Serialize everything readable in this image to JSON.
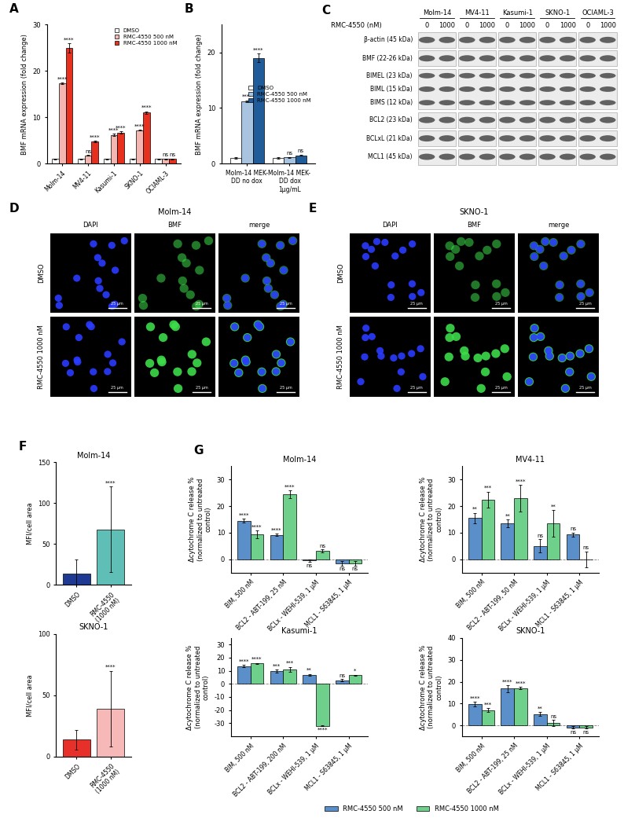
{
  "chart_data": [
    {
      "panel": "A",
      "type": "bar",
      "ylabel": "BMF mRNA expression (fold change)",
      "categories": [
        "Molm-14",
        "MV4-11",
        "Kasumi-1",
        "SKNO-1",
        "OCIAML-3"
      ],
      "series": [
        {
          "name": "DMSO",
          "color": "#ffffff",
          "values": [
            1,
            1,
            1,
            1,
            1
          ],
          "errors": [
            0.1,
            0.1,
            0.1,
            0.1,
            0.1
          ],
          "significance": [
            null,
            null,
            null,
            null,
            null
          ]
        },
        {
          "name": "RMC-4550 500 nM",
          "color": "#f4b6b0",
          "values": [
            17.3,
            1.8,
            6.2,
            7.2,
            1.0
          ],
          "errors": [
            0.2,
            0.1,
            0.2,
            0.1,
            0.1
          ],
          "significance": [
            "****",
            "ns",
            "****",
            "****",
            "ns"
          ]
        },
        {
          "name": "RMC-4550 1000 nM",
          "color": "#e8301f",
          "values": [
            25,
            4.8,
            6.7,
            11,
            1.0
          ],
          "errors": [
            1.0,
            0.2,
            0.2,
            0.3,
            0.1
          ],
          "significance": [
            "****",
            "****",
            "****",
            "****",
            "ns"
          ]
        }
      ],
      "ylim": [
        0,
        30
      ],
      "yticks": [
        0,
        10,
        20,
        30
      ],
      "legend": "upper right"
    },
    {
      "panel": "B",
      "type": "bar",
      "ylabel": "BMF mRNA expression (fold change)",
      "categories": [
        "Molm-14 MEK-DD no dox",
        "Molm-14 MEK-DD dox 1μg/mL"
      ],
      "series": [
        {
          "name": "DMSO",
          "color": "#ffffff",
          "values": [
            1,
            1
          ],
          "errors": [
            0.1,
            0.1
          ],
          "significance": [
            null,
            null
          ]
        },
        {
          "name": "RMC-4550 500 nM",
          "color": "#a9c4e0",
          "values": [
            11.2,
            1.1
          ],
          "errors": [
            0.2,
            0.1
          ],
          "significance": [
            "****",
            "ns"
          ]
        },
        {
          "name": "RMC-4550 1000 nM",
          "color": "#1f5c99",
          "values": [
            19,
            1.5
          ],
          "errors": [
            0.8,
            0.1
          ],
          "significance": [
            "****",
            "ns"
          ]
        }
      ],
      "ylim": [
        0,
        25
      ],
      "yticks": [
        0,
        10,
        20
      ],
      "legend": "center right"
    },
    {
      "panel": "F",
      "type": "bar",
      "title": "Molm-14",
      "ylabel": "MFI/cell area",
      "categories": [
        "DMSO",
        "RMC-4550 (1000 nM)"
      ],
      "values": [
        14,
        68
      ],
      "errors": [
        17,
        52
      ],
      "colors": [
        "#1f3a93",
        "#5fbfb7"
      ],
      "significance": [
        null,
        "****"
      ],
      "ylim": [
        0,
        150
      ],
      "yticks": [
        0,
        50,
        100,
        150
      ]
    },
    {
      "type": "bar",
      "title": "SKNO-1",
      "ylabel": "MFI/cell area",
      "categories": [
        "DMSO",
        "RMC-4550 (1000 nM)"
      ],
      "values": [
        14,
        39
      ],
      "errors": [
        8,
        31
      ],
      "colors": [
        "#e8302a",
        "#f7b8b8"
      ],
      "significance": [
        null,
        "****"
      ],
      "ylim": [
        0,
        100
      ],
      "yticks": [
        0,
        50,
        100
      ]
    },
    {
      "panel": "G",
      "type": "bar",
      "title": "Molm-14",
      "ylabel": "Δcytochrome C release % (normalized to untreated control)",
      "categories": [
        "BIM, 500 nM",
        "BCL2 - ABT-199, 25 nM",
        "BCLx - WEHI-539, 1 µM",
        "MCL1 - S63845, 1 µM"
      ],
      "series": [
        {
          "name": "RMC-4550 500 nM",
          "color": "#5b8fc9",
          "values": [
            14.5,
            9.2,
            -0.5,
            -1.5
          ],
          "errors": [
            0.8,
            0.5,
            0.5,
            0.8
          ],
          "significance": [
            "****",
            "****",
            "ns",
            "ns"
          ]
        },
        {
          "name": "RMC-4550 1000 nM",
          "color": "#6fd08c",
          "values": [
            9.3,
            24.5,
            3.2,
            -1.5
          ],
          "errors": [
            1.5,
            1.5,
            0.5,
            0.8
          ],
          "significance": [
            "****",
            "****",
            "ns",
            "ns"
          ]
        }
      ],
      "ylim": [
        -5,
        35
      ],
      "yticks": [
        0,
        10,
        20,
        30
      ]
    },
    {
      "type": "bar",
      "title": "MV4-11",
      "ylabel": "Δcytochrome C release % (normalized to untreated control)",
      "categories": [
        "BIM, 500 nM",
        "BCL2 - ABT-199, 50 nM",
        "BCLx - WEHI-539, 1 µM",
        "MCL1 - S63845, 1 µM"
      ],
      "series": [
        {
          "name": "RMC-4550 500 nM",
          "color": "#5b8fc9",
          "values": [
            15.5,
            13.5,
            5,
            9.3
          ],
          "errors": [
            2,
            1.5,
            2.5,
            0.8
          ],
          "significance": [
            "**",
            "**",
            "ns",
            "ns"
          ]
        },
        {
          "name": "RMC-4550 1000 nM",
          "color": "#6fd08c",
          "values": [
            22.5,
            23,
            13.5,
            0
          ],
          "errors": [
            3,
            5,
            5,
            3
          ],
          "significance": [
            "***",
            "****",
            "**",
            "ns"
          ]
        }
      ],
      "ylim": [
        -5,
        35
      ],
      "yticks": [
        0,
        10,
        20,
        30
      ]
    },
    {
      "type": "bar",
      "title": "Kasumi-1",
      "ylabel": "Δcytochrome C release % (normalized to untreated control)",
      "categories": [
        "BIM, 500 nM",
        "BCL2 - ABT-199, 200 nM",
        "BCLx - WEHI-539, 1 µM",
        "MCL1 - S63845, 1 µM"
      ],
      "series": [
        {
          "name": "RMC-4550 500 nM",
          "color": "#5b8fc9",
          "values": [
            13.5,
            9.8,
            6.8,
            2.8
          ],
          "errors": [
            1,
            1,
            0.8,
            0.8
          ],
          "significance": [
            "****",
            "***",
            "**",
            "ns"
          ]
        },
        {
          "name": "RMC-4550 1000 nM",
          "color": "#6fd08c",
          "values": [
            15.5,
            11,
            -32,
            6.5
          ],
          "errors": [
            0.5,
            2,
            0.5,
            0.5
          ],
          "significance": [
            "****",
            "***",
            "****",
            "*"
          ]
        }
      ],
      "ylim": [
        -40,
        35
      ],
      "yticks": [
        -30,
        -20,
        -10,
        0,
        10,
        20,
        30
      ]
    },
    {
      "type": "bar",
      "title": "SKNO-1",
      "ylabel": "Δcytochrome C release % (normalized to untreated control)",
      "categories": [
        "BIM, 500 nM",
        "BCL2 - ABT-199, 25 nM",
        "BCLx - WEHI-539, 1 µM",
        "MCL1 - S63845, 1 µM"
      ],
      "series": [
        {
          "name": "RMC-4550 500 nM",
          "color": "#5b8fc9",
          "values": [
            9.8,
            16.8,
            5.2,
            -1
          ],
          "errors": [
            1,
            1.5,
            1,
            0.5
          ],
          "significance": [
            "****",
            "****",
            "**",
            "ns"
          ]
        },
        {
          "name": "RMC-4550 1000 nM",
          "color": "#6fd08c",
          "values": [
            7,
            17,
            1,
            -1
          ],
          "errors": [
            1,
            0.5,
            1.5,
            0.5
          ],
          "significance": [
            "***",
            "****",
            "ns",
            "ns"
          ]
        }
      ],
      "ylim": [
        -5,
        40
      ],
      "yticks": [
        0,
        10,
        20,
        30,
        40
      ],
      "legend": "lower center"
    }
  ],
  "blot": {
    "panel": "C",
    "title": "RMC-4550 (nM)",
    "cell_lines": [
      {
        "name": "Molm-14",
        "doses": [
          0,
          1000
        ]
      },
      {
        "name": "MV4-11",
        "doses": [
          0,
          1000
        ]
      },
      {
        "name": "Kasumi-1",
        "doses": [
          0,
          1000
        ]
      },
      {
        "name": "SKNO-1",
        "doses": [
          0,
          1000
        ]
      },
      {
        "name": "OCIAML-3",
        "doses": [
          0,
          1000
        ]
      }
    ],
    "bands": [
      [
        "β-actin (45 kDa)"
      ],
      [
        "BMF (22-26 kDa)"
      ],
      [
        "BIMEL (23 kDa)",
        "BIML (15 kDa)",
        "BIMS (12 kDa)"
      ],
      [
        "BCL2 (23 kDa)"
      ],
      [
        "BCLxL (21 kDa)"
      ],
      [
        "MCL1 (45 kDa)"
      ]
    ]
  },
  "micrographs": [
    {
      "panel": "D",
      "title": "Molm-14",
      "channels": [
        "DAPI",
        "BMF",
        "merge"
      ],
      "conditions": [
        "DMSO",
        "RMC-4550 1000 nM"
      ],
      "scale_bar": "25 μm"
    },
    {
      "panel": "E",
      "title": "SKNO-1",
      "channels": [
        "DAPI",
        "BMF",
        "merge"
      ],
      "conditions": [
        "DMSO",
        "RMC-4550 1000 nM"
      ],
      "scale_bar": "25 μm"
    }
  ]
}
